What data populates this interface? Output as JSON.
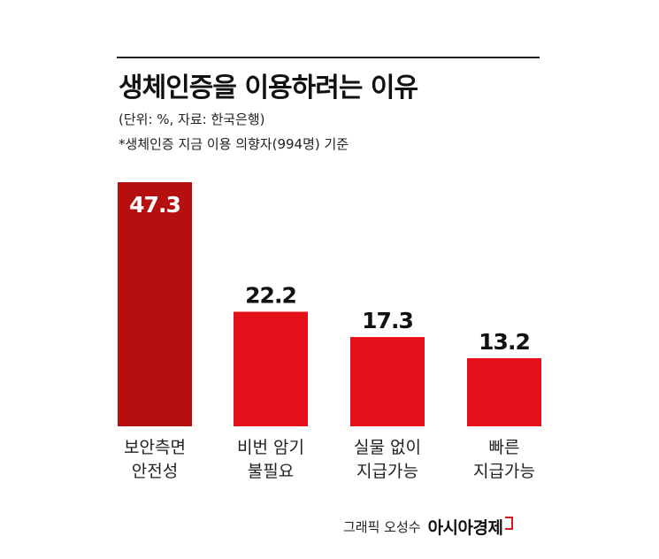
{
  "title": "생체인증을 이용하려는 이유",
  "unit_note": "(단위: %, 자료: 한국은행)",
  "sample_note": "*생체인증 지금 이용 의향자(994명) 기준",
  "credit": {
    "author": "그래픽 오성수",
    "brand": "아시아경제"
  },
  "colors": {
    "highlight": "#b50f10",
    "bar": "#e6101a",
    "text": "#111111"
  },
  "chart_data": {
    "type": "bar",
    "categories": [
      [
        "보안측면",
        "안전성"
      ],
      [
        "비번 암기",
        "불필요"
      ],
      [
        "실물 없이",
        "지급가능"
      ],
      [
        "빠른",
        "지급가능"
      ]
    ],
    "values": [
      47.3,
      22.2,
      17.3,
      13.2
    ],
    "data_labels": [
      "47.3",
      "22.2",
      "17.3",
      "13.2"
    ],
    "highlight_index": 0,
    "ylim": [
      0,
      50
    ],
    "grid": false,
    "legend": "none",
    "title": "생체인증을 이용하려는 이유",
    "xlabel": "",
    "ylabel": ""
  }
}
